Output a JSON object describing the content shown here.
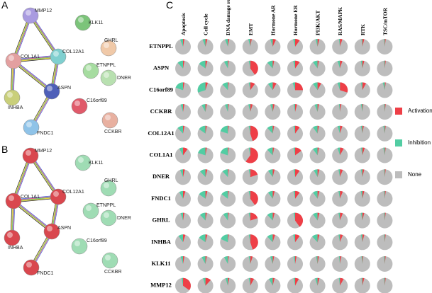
{
  "panels": {
    "a": "A",
    "b": "B",
    "c": "C"
  },
  "network_a": {
    "nodes": [
      {
        "label": "MMP12"
      },
      {
        "label": "KLK11"
      },
      {
        "label": "COL1A1"
      },
      {
        "label": "COL12A1"
      },
      {
        "label": "GHRL"
      },
      {
        "label": "ETNPPL"
      },
      {
        "label": "DNER"
      },
      {
        "label": "INHBA"
      },
      {
        "label": "ASPN"
      },
      {
        "label": "C16orf89"
      },
      {
        "label": "FNDC1"
      },
      {
        "label": "CCKBR"
      }
    ]
  },
  "network_b": {
    "nodes": [
      {
        "label": "MMP12"
      },
      {
        "label": "KLK11"
      },
      {
        "label": "COL1A1"
      },
      {
        "label": "COL12A1"
      },
      {
        "label": "GHRL"
      },
      {
        "label": "ETNPPL"
      },
      {
        "label": "DNER"
      },
      {
        "label": "INHBA"
      },
      {
        "label": "ASPN"
      },
      {
        "label": "C16orf89"
      },
      {
        "label": "FNDC1"
      },
      {
        "label": "CCKBR"
      }
    ]
  },
  "chart_data": {
    "type": "pie-matrix",
    "categories": [
      "Apoptosis",
      "Cell cycle",
      "DNA damage response",
      "EMT",
      "Hormone AR",
      "Hormone ER",
      "PI3K/AKT",
      "RAS/MAPK",
      "RTK",
      "TSC/mTOR"
    ],
    "rows": [
      "ETNPPL",
      "ASPN",
      "C16orf89",
      "CCKBR",
      "COL12A1",
      "COL1A1",
      "DNER",
      "FNDC1",
      "GHRL",
      "INHBA",
      "KLK11",
      "MMP12"
    ],
    "series": [
      {
        "name": "Activation",
        "color": "#ee3f47",
        "values": [
          [
            3,
            4,
            3,
            3,
            7,
            10,
            4,
            5,
            4,
            2
          ],
          [
            3,
            4,
            2,
            40,
            3,
            10,
            3,
            5,
            4,
            2
          ],
          [
            3,
            5,
            2,
            10,
            8,
            25,
            8,
            30,
            8,
            2
          ],
          [
            3,
            3,
            2,
            5,
            4,
            4,
            3,
            3,
            2,
            2
          ],
          [
            3,
            3,
            2,
            45,
            3,
            10,
            3,
            5,
            3,
            2
          ],
          [
            10,
            3,
            2,
            60,
            3,
            15,
            3,
            8,
            5,
            2
          ],
          [
            4,
            4,
            2,
            20,
            4,
            10,
            4,
            6,
            4,
            2
          ],
          [
            5,
            4,
            2,
            40,
            4,
            10,
            4,
            6,
            4,
            2
          ],
          [
            3,
            3,
            2,
            20,
            4,
            40,
            4,
            6,
            4,
            2
          ],
          [
            5,
            4,
            2,
            45,
            5,
            10,
            4,
            6,
            4,
            2
          ],
          [
            3,
            3,
            2,
            5,
            3,
            3,
            3,
            3,
            2,
            2
          ],
          [
            35,
            12,
            3,
            8,
            4,
            8,
            4,
            8,
            4,
            2
          ]
        ]
      },
      {
        "name": "Inhibition",
        "color": "#52cda3",
        "values": [
          [
            6,
            6,
            6,
            4,
            5,
            4,
            4,
            2,
            2,
            2
          ],
          [
            12,
            15,
            8,
            3,
            12,
            4,
            10,
            5,
            3,
            2
          ],
          [
            20,
            30,
            12,
            3,
            10,
            5,
            10,
            5,
            3,
            4
          ],
          [
            5,
            8,
            6,
            4,
            5,
            3,
            6,
            2,
            3,
            2
          ],
          [
            12,
            15,
            20,
            3,
            12,
            3,
            10,
            5,
            3,
            3
          ],
          [
            8,
            20,
            20,
            3,
            12,
            3,
            10,
            5,
            3,
            3
          ],
          [
            6,
            12,
            12,
            3,
            10,
            3,
            8,
            3,
            3,
            2
          ],
          [
            8,
            15,
            15,
            3,
            10,
            3,
            10,
            3,
            3,
            2
          ],
          [
            5,
            12,
            10,
            3,
            12,
            3,
            10,
            3,
            3,
            2
          ],
          [
            10,
            15,
            18,
            3,
            12,
            4,
            12,
            3,
            3,
            2
          ],
          [
            5,
            8,
            8,
            3,
            5,
            3,
            3,
            2,
            2,
            2
          ],
          [
            3,
            5,
            5,
            3,
            8,
            3,
            5,
            2,
            2,
            2
          ]
        ]
      },
      {
        "name": "None",
        "color": "#bdbdbd"
      }
    ]
  }
}
